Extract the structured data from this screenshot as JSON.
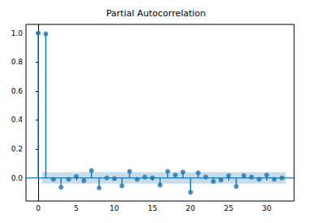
{
  "chart_data": {
    "type": "stem",
    "title": "Partial Autocorrelation",
    "x": [
      0,
      1,
      2,
      3,
      4,
      5,
      6,
      7,
      8,
      9,
      10,
      11,
      12,
      13,
      14,
      15,
      16,
      17,
      18,
      19,
      20,
      21,
      22,
      23,
      24,
      25,
      26,
      27,
      28,
      29,
      30,
      31,
      32
    ],
    "values": [
      1.0,
      0.995,
      -0.01,
      -0.065,
      -0.01,
      0.01,
      -0.02,
      0.05,
      -0.07,
      0.0,
      -0.005,
      -0.055,
      0.045,
      -0.01,
      0.005,
      0.0,
      -0.05,
      0.045,
      0.02,
      0.04,
      -0.1,
      0.035,
      0.005,
      -0.025,
      -0.015,
      0.015,
      -0.06,
      0.015,
      0.005,
      -0.01,
      0.02,
      -0.01,
      0.0
    ],
    "color": "#1f77b4",
    "marker": "circle",
    "confidence_band": {
      "lower": -0.04,
      "upper": 0.04,
      "x": [
        0.5,
        32.5
      ]
    },
    "xlim": [
      -1.6,
      33.6
    ],
    "xticks": [
      0,
      5,
      10,
      15,
      20,
      25,
      30
    ],
    "ylim": [
      -0.16,
      1.06
    ],
    "yticks": [
      {
        "value": 0.0,
        "label": "0.0"
      },
      {
        "value": 0.2,
        "label": "0.2"
      },
      {
        "value": 0.4,
        "label": "0.4"
      },
      {
        "value": 0.6,
        "label": "0.6"
      },
      {
        "value": 0.8,
        "label": "0.8"
      },
      {
        "value": 1.0,
        "label": "1.0"
      }
    ],
    "grid": false
  }
}
